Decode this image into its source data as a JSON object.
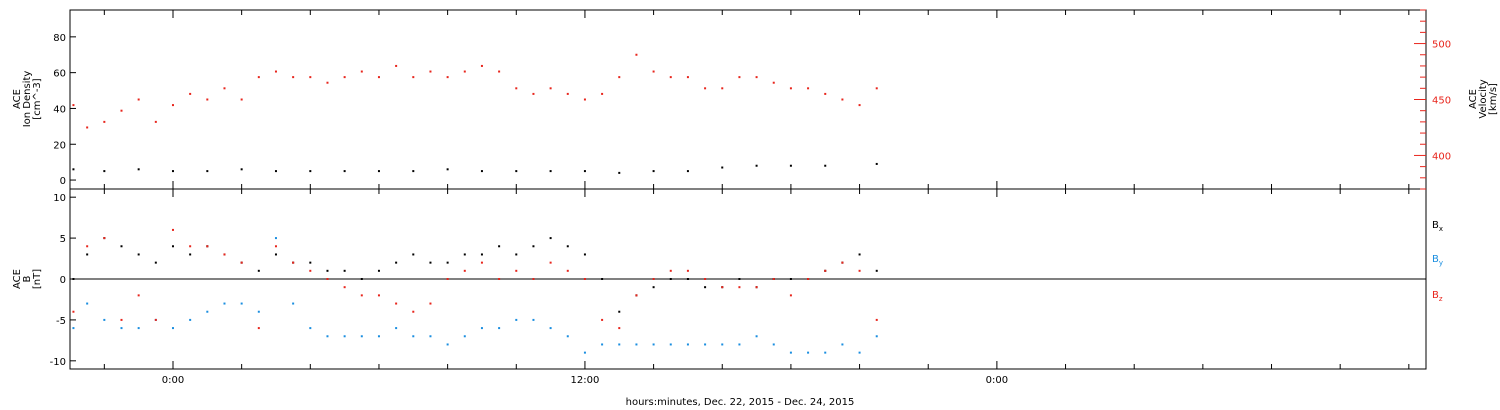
{
  "colors": {
    "black": "#000000",
    "red": "#e8251c",
    "blue": "#1a8ee0",
    "axis": "#000000"
  },
  "x_axis": {
    "label": "hours:minutes, Dec. 22, 2015 - Dec. 24, 2015",
    "range_hours": [
      -3,
      36.5
    ],
    "major_ticks": [
      {
        "value": 0,
        "label": "0:00"
      },
      {
        "value": 12,
        "label": "12:00"
      },
      {
        "value": 24,
        "label": "0:00"
      }
    ],
    "minor_tick_step": 2
  },
  "chart_data": [
    {
      "type": "scatter",
      "ylabel_left": [
        "ACE",
        "Ion Density",
        "[cm^-3]"
      ],
      "ylabel_right": [
        "ACE",
        "Velocity",
        "[km/s]"
      ],
      "ylim_left": [
        -5,
        95
      ],
      "yticks_left": [
        0,
        20,
        40,
        60,
        80
      ],
      "ylim_right": [
        370,
        530
      ],
      "yticks_right": [
        400,
        450,
        500
      ],
      "series": [
        {
          "axis": "left",
          "color": "black",
          "x": [
            -2.9,
            -2,
            -1,
            0,
            1,
            2,
            3,
            4,
            5,
            6,
            7,
            8,
            9,
            10,
            11,
            12,
            13,
            14,
            15,
            16,
            17,
            18,
            19,
            20.5
          ],
          "y": [
            6,
            5,
            6,
            5,
            5,
            6,
            5,
            5,
            5,
            5,
            5,
            6,
            5,
            5,
            5,
            5,
            4,
            5,
            5,
            7,
            8,
            8,
            8,
            9
          ]
        },
        {
          "axis": "right",
          "color": "red",
          "x": [
            -2.9,
            -2.5,
            -2,
            -1.5,
            -1,
            -0.5,
            0,
            0.5,
            1,
            1.5,
            2,
            2.5,
            3,
            3.5,
            4,
            4.5,
            5,
            5.5,
            6,
            6.5,
            7,
            7.5,
            8,
            8.5,
            9,
            9.5,
            10,
            10.5,
            11,
            11.5,
            12,
            12.5,
            13,
            13.5,
            14,
            14.5,
            15,
            15.5,
            16,
            16.5,
            17,
            17.5,
            18,
            18.5,
            19,
            19.5,
            20,
            20.5
          ],
          "y": [
            445,
            425,
            430,
            440,
            450,
            430,
            445,
            455,
            450,
            460,
            450,
            470,
            475,
            470,
            470,
            465,
            470,
            475,
            470,
            480,
            470,
            475,
            470,
            475,
            480,
            475,
            460,
            455,
            460,
            455,
            450,
            455,
            470,
            490,
            475,
            470,
            470,
            460,
            460,
            470,
            470,
            465,
            460,
            460,
            455,
            450,
            445,
            460
          ]
        }
      ]
    },
    {
      "type": "scatter",
      "ylabel_left": [
        "ACE",
        "B",
        "[nT]"
      ],
      "ylim": [
        -11,
        11
      ],
      "yticks": [
        -10,
        -5,
        0,
        5,
        10
      ],
      "zero_line": true,
      "series": [
        {
          "name": "Bx",
          "color": "black",
          "x": [
            -2.9,
            -2.5,
            -2,
            -1.5,
            -1,
            -0.5,
            0,
            0.5,
            1,
            1.5,
            2,
            2.5,
            3,
            3.5,
            4,
            4.5,
            5,
            5.5,
            6,
            6.5,
            7,
            7.5,
            8,
            8.5,
            9,
            9.5,
            10,
            10.5,
            11,
            11.5,
            12,
            12.5,
            13,
            13.5,
            14,
            14.5,
            15,
            15.5,
            16,
            16.5,
            17,
            17.5,
            18,
            18.5,
            19,
            19.5,
            20,
            20.5
          ],
          "y": [
            0,
            3,
            5,
            4,
            3,
            2,
            4,
            3,
            4,
            3,
            2,
            1,
            3,
            2,
            2,
            1,
            1,
            0,
            1,
            2,
            3,
            2,
            2,
            3,
            3,
            4,
            3,
            4,
            5,
            4,
            3,
            0,
            -4,
            -2,
            -1,
            0,
            0,
            -1,
            -1,
            0,
            -1,
            0,
            0,
            0,
            1,
            2,
            3,
            1
          ]
        },
        {
          "name": "By",
          "color": "blue",
          "x": [
            -2.9,
            -2.5,
            -2,
            -1.5,
            -1,
            -0.5,
            0,
            0.5,
            1,
            1.5,
            2,
            2.5,
            3,
            3.5,
            4,
            4.5,
            5,
            5.5,
            6,
            6.5,
            7,
            7.5,
            8,
            8.5,
            9,
            9.5,
            10,
            10.5,
            11,
            11.5,
            12,
            12.5,
            13,
            13.5,
            14,
            14.5,
            15,
            15.5,
            16,
            16.5,
            17,
            17.5,
            18,
            18.5,
            19,
            19.5,
            20,
            20.5
          ],
          "y": [
            -6,
            -3,
            -5,
            -6,
            -6,
            -5,
            -6,
            -5,
            -4,
            -3,
            -3,
            -4,
            5,
            -3,
            -6,
            -7,
            -7,
            -7,
            -7,
            -6,
            -7,
            -7,
            -8,
            -7,
            -6,
            -6,
            -5,
            -5,
            -6,
            -7,
            -9,
            -8,
            -8,
            -8,
            -8,
            -8,
            -8,
            -8,
            -8,
            -8,
            -7,
            -8,
            -9,
            -9,
            -9,
            -8,
            -9,
            -7
          ]
        },
        {
          "name": "Bz",
          "color": "red",
          "x": [
            -2.9,
            -2.5,
            -2,
            -1.5,
            -1,
            -0.5,
            0,
            0.5,
            1,
            1.5,
            2,
            2.5,
            3,
            3.5,
            4,
            4.5,
            5,
            5.5,
            6,
            6.5,
            7,
            7.5,
            8,
            8.5,
            9,
            9.5,
            10,
            10.5,
            11,
            11.5,
            12,
            12.5,
            13,
            13.5,
            14,
            14.5,
            15,
            15.5,
            16,
            16.5,
            17,
            17.5,
            18,
            18.5,
            19,
            19.5,
            20,
            20.5
          ],
          "y": [
            -4,
            4,
            5,
            -5,
            -2,
            -5,
            6,
            4,
            4,
            3,
            2,
            -6,
            4,
            2,
            1,
            0,
            -1,
            -2,
            -2,
            -3,
            -4,
            -3,
            0,
            1,
            2,
            0,
            1,
            0,
            2,
            1,
            0,
            -5,
            -6,
            -2,
            0,
            1,
            1,
            0,
            -1,
            -1,
            -1,
            0,
            -2,
            0,
            1,
            2,
            1,
            -5
          ]
        }
      ],
      "legend": {
        "placement": "right",
        "items": [
          {
            "base": "B",
            "sub": "x",
            "color": "black"
          },
          {
            "base": "B",
            "sub": "y",
            "color": "blue"
          },
          {
            "base": "B",
            "sub": "z",
            "color": "red"
          }
        ]
      }
    }
  ]
}
